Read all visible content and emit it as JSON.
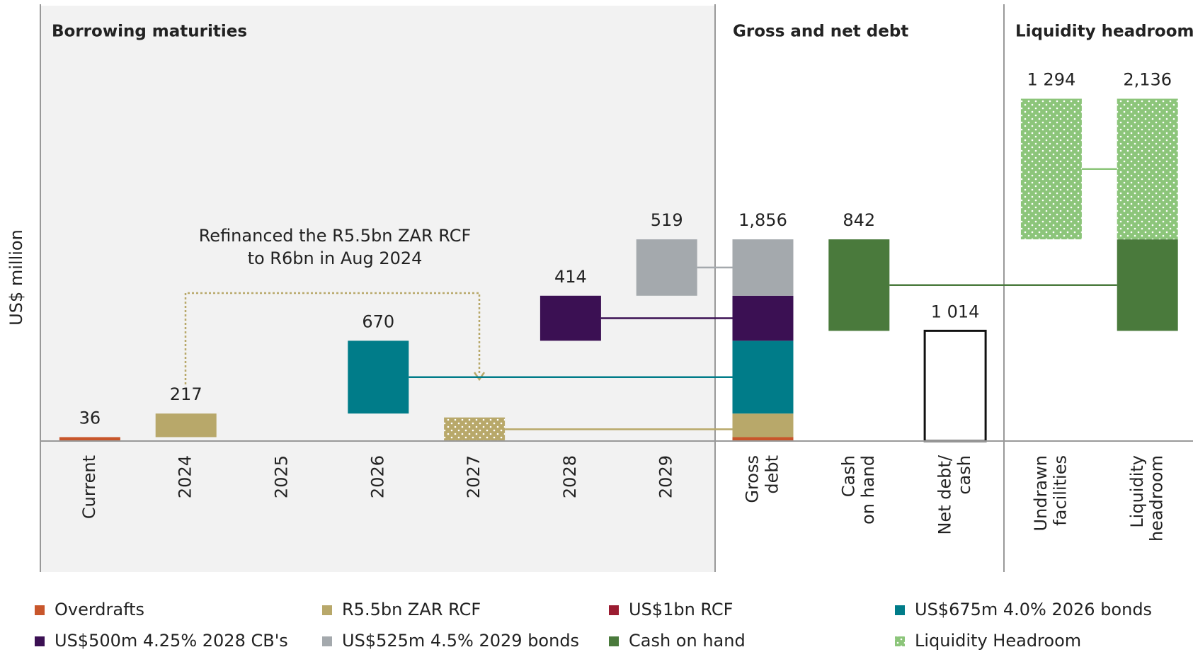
{
  "chart_data": {
    "type": "waterfall",
    "y_label": "US$ million",
    "sections": [
      {
        "title": "Borrowing maturities"
      },
      {
        "title": "Gross and net debt"
      },
      {
        "title": "Liquidity headroom"
      }
    ],
    "annotation": "Refinanced the R5.5bn ZAR RCF\nto R6bn in Aug 2024",
    "categories": [
      "Current",
      "2024",
      "2025",
      "2026",
      "2027",
      "2028",
      "2029",
      "Gross\ndebt",
      "Cash\non hand",
      "Net debt/\ncash",
      "Undrawn\nfacilities",
      "Liquidity\nheadroom"
    ],
    "values": [
      36,
      217,
      null,
      670,
      null,
      414,
      519,
      1856,
      842,
      1014,
      1294,
      2136
    ],
    "value_labels": [
      "36",
      "217",
      null,
      "670",
      null,
      "414",
      "519",
      "1,856",
      "842",
      "1 014",
      "1 294",
      "2,136"
    ],
    "dotted_categories": [
      4
    ],
    "series": [
      {
        "name": "Overdrafts",
        "color": "#c8562b",
        "values": [
          36,
          null,
          null,
          null,
          null,
          null,
          null,
          36,
          null,
          null,
          null,
          null
        ]
      },
      {
        "name": "R5.5bn ZAR RCF",
        "color": "#b8a86a",
        "values": [
          null,
          217,
          null,
          null,
          217,
          null,
          null,
          217,
          null,
          null,
          null,
          null
        ]
      },
      {
        "name": "US$1bn RCF",
        "color": "#9b1c31",
        "values": [
          null,
          null,
          null,
          null,
          null,
          null,
          null,
          null,
          null,
          null,
          null,
          null
        ]
      },
      {
        "name": "US$675m 4.0% 2026 bonds",
        "color": "#007c89",
        "values": [
          null,
          null,
          null,
          670,
          null,
          null,
          null,
          670,
          null,
          null,
          null,
          null
        ]
      },
      {
        "name": "US$500m 4.25% 2028 CB's",
        "color": "#3b1053",
        "values": [
          null,
          null,
          null,
          null,
          null,
          414,
          null,
          414,
          null,
          null,
          null,
          null
        ]
      },
      {
        "name": "US$525m 4.5% 2029 bonds",
        "color": "#a4a9ad",
        "values": [
          null,
          null,
          null,
          null,
          null,
          null,
          519,
          519,
          null,
          null,
          null,
          null
        ]
      },
      {
        "name": "Cash on hand",
        "color": "#4a7a3c",
        "values": [
          null,
          null,
          null,
          null,
          null,
          null,
          null,
          null,
          842,
          null,
          null,
          842
        ]
      },
      {
        "name": "Liquidity Headroom",
        "color": "#8cc57a",
        "pattern": "dots",
        "values": [
          null,
          null,
          null,
          null,
          null,
          null,
          null,
          null,
          null,
          null,
          1294,
          1294
        ]
      }
    ],
    "ylim": [
      0,
      4000
    ]
  }
}
